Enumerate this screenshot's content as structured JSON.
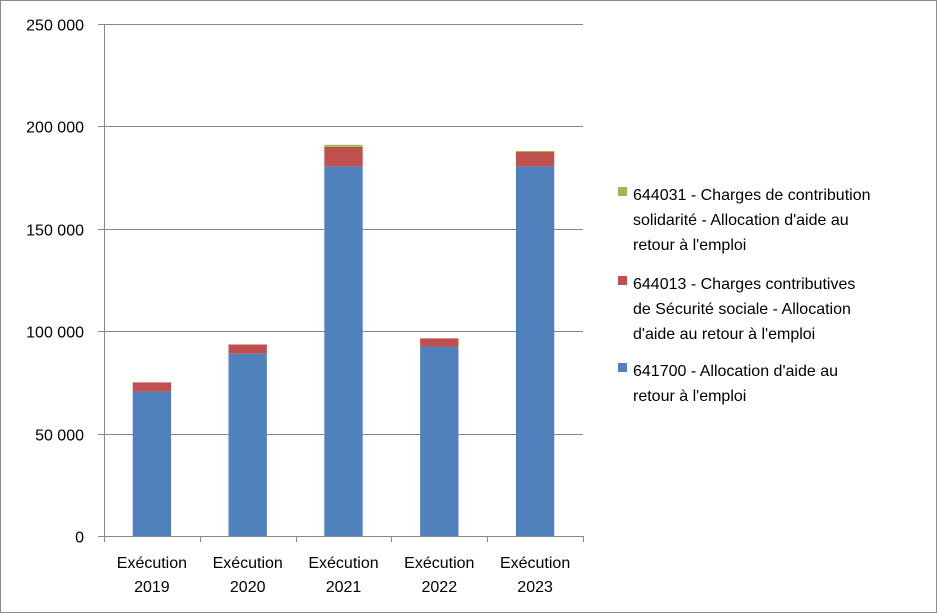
{
  "chart_data": {
    "type": "bar",
    "stacked": true,
    "categories": [
      [
        "Exécution",
        "2019"
      ],
      [
        "Exécution",
        "2020"
      ],
      [
        "Exécution",
        "2021"
      ],
      [
        "Exécution",
        "2022"
      ],
      [
        "Exécution",
        "2023"
      ]
    ],
    "series": [
      {
        "name": [
          "641700 - Allocation d'aide au",
          "retour à l'emploi"
        ],
        "color": "#4f81bd",
        "values": [
          70500,
          89000,
          180500,
          92500,
          180500
        ]
      },
      {
        "name": [
          "644013 - Charges contributives",
          "de Sécurité sociale - Allocation",
          "d'aide au retour à l'emploi"
        ],
        "color": "#c0504d",
        "values": [
          4500,
          4500,
          9500,
          4000,
          7000
        ]
      },
      {
        "name": [
          "644031 - Charges de contribution",
          "solidarité - Allocation d'aide au",
          "retour à l'emploi"
        ],
        "color": "#9bbb59",
        "values": [
          0,
          0,
          1000,
          0,
          500
        ]
      }
    ],
    "ylim": [
      0,
      250000
    ],
    "yticks": [
      "0",
      "50 000",
      "100 000",
      "150 000",
      "200 000",
      "250 000"
    ],
    "grid": true,
    "legend_position": "right"
  }
}
